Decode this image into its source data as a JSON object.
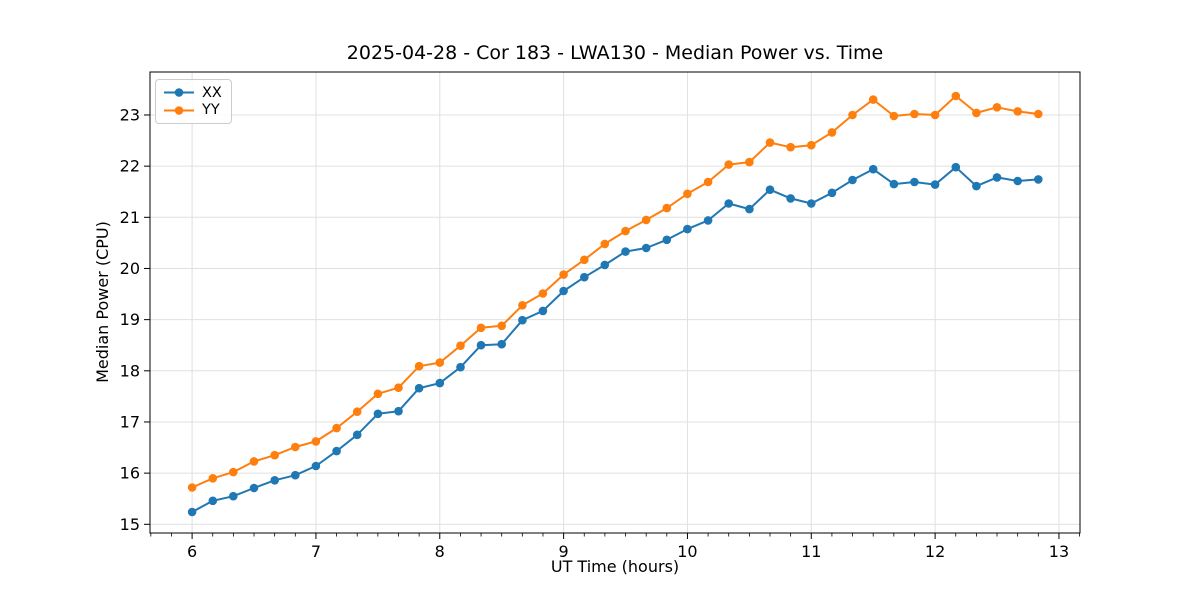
{
  "chart_data": {
    "type": "line",
    "title": "2025-04-28 - Cor 183 - LWA130 - Median Power vs. Time",
    "xlabel": "UT Time (hours)",
    "ylabel": "Median Power (CPU)",
    "xlim": [
      5.66,
      13.17
    ],
    "ylim": [
      14.83,
      23.84
    ],
    "x_major_ticks": [
      6,
      7,
      8,
      9,
      10,
      11,
      12,
      13
    ],
    "y_major_ticks": [
      15,
      16,
      17,
      18,
      19,
      20,
      21,
      22,
      23
    ],
    "x_minor_tick_step": 0.16667,
    "grid": true,
    "legend_position": "upper-left",
    "x": [
      6.0,
      6.167,
      6.333,
      6.5,
      6.667,
      6.833,
      7.0,
      7.167,
      7.333,
      7.5,
      7.667,
      7.833,
      8.0,
      8.167,
      8.333,
      8.5,
      8.667,
      8.833,
      9.0,
      9.167,
      9.333,
      9.5,
      9.667,
      9.833,
      10.0,
      10.167,
      10.333,
      10.5,
      10.667,
      10.833,
      11.0,
      11.167,
      11.333,
      11.5,
      11.667,
      11.833,
      12.0,
      12.167,
      12.333,
      12.5,
      12.667,
      12.833
    ],
    "series": [
      {
        "name": "XX",
        "color": "#1f77b4",
        "values": [
          15.24,
          15.46,
          15.55,
          15.71,
          15.86,
          15.96,
          16.14,
          16.43,
          16.75,
          17.16,
          17.21,
          17.66,
          17.76,
          18.07,
          18.5,
          18.52,
          18.99,
          19.17,
          19.56,
          19.83,
          20.07,
          20.33,
          20.4,
          20.56,
          20.77,
          20.94,
          21.27,
          21.16,
          21.54,
          21.37,
          21.27,
          21.48,
          21.73,
          21.94,
          21.65,
          21.69,
          21.64,
          21.98,
          21.61,
          21.78,
          21.71,
          21.74
        ]
      },
      {
        "name": "YY",
        "color": "#ff7f0e",
        "values": [
          15.72,
          15.9,
          16.02,
          16.23,
          16.35,
          16.51,
          16.62,
          16.88,
          17.2,
          17.55,
          17.67,
          18.09,
          18.16,
          18.49,
          18.84,
          18.88,
          19.28,
          19.51,
          19.88,
          20.17,
          20.48,
          20.73,
          20.95,
          21.18,
          21.46,
          21.69,
          22.03,
          22.08,
          22.46,
          22.37,
          22.41,
          22.66,
          23.0,
          23.3,
          22.98,
          23.02,
          23.0,
          23.37,
          23.04,
          23.15,
          23.07,
          23.02
        ]
      }
    ],
    "style": {
      "grid_color": "#e0e0e0",
      "spine_color": "#000000",
      "background": "#ffffff",
      "line_width": 2,
      "marker_radius": 4.3
    }
  }
}
